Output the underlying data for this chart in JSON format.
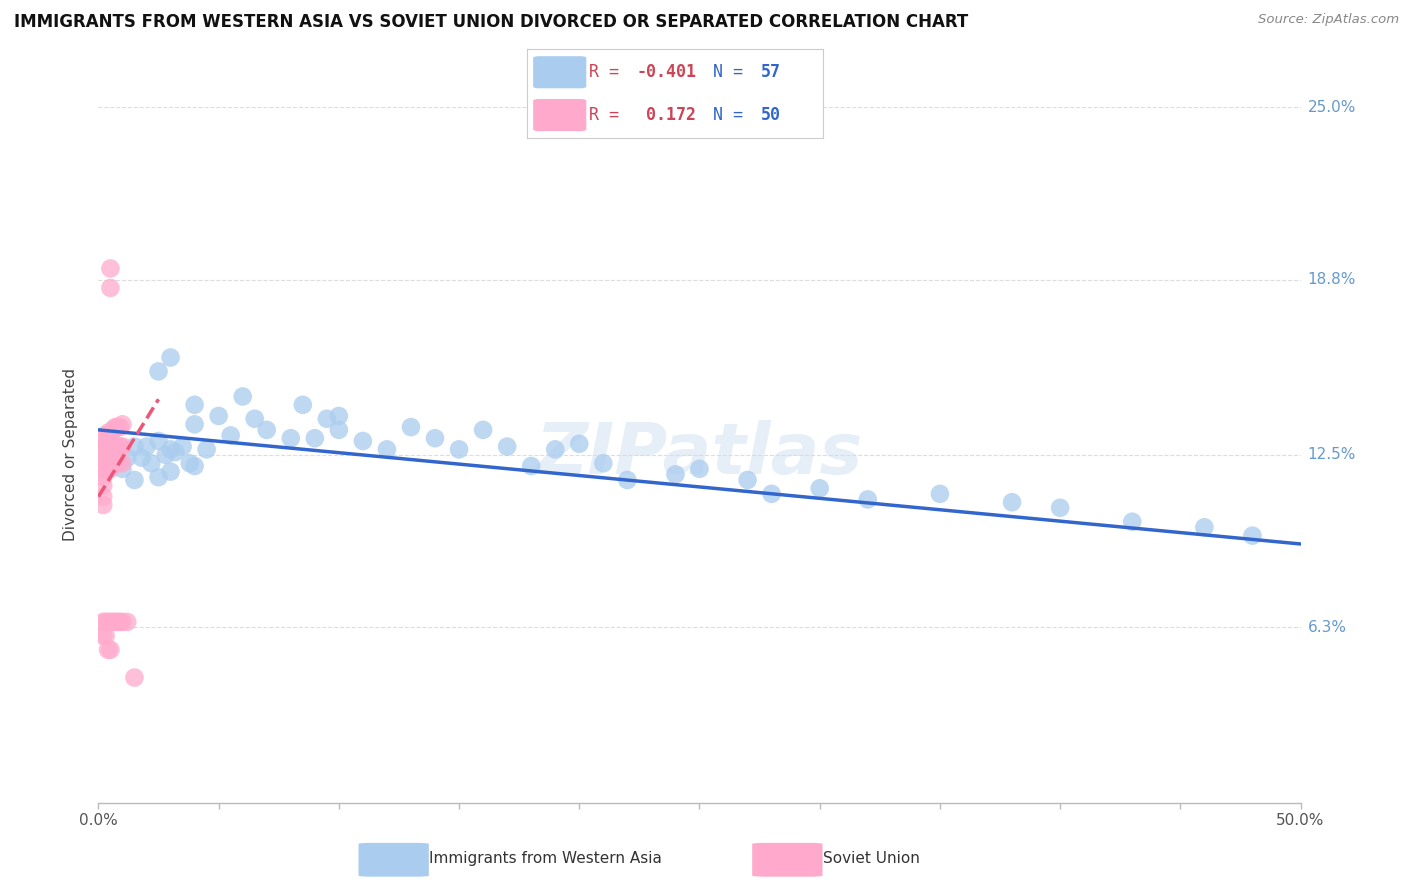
{
  "title": "IMMIGRANTS FROM WESTERN ASIA VS SOVIET UNION DIVORCED OR SEPARATED CORRELATION CHART",
  "source": "Source: ZipAtlas.com",
  "ylabel": "Divorced or Separated",
  "xlim": [
    0.0,
    0.5
  ],
  "ylim": [
    0.0,
    0.25
  ],
  "xtick_values": [
    0.0,
    0.05,
    0.1,
    0.15,
    0.2,
    0.25,
    0.3,
    0.35,
    0.4,
    0.45,
    0.5
  ],
  "xticklabels_visible": [
    "0.0%",
    "50.0%"
  ],
  "xticklabels_pos": [
    0.0,
    0.5
  ],
  "ytick_values": [
    0.063,
    0.125,
    0.188,
    0.25
  ],
  "ytick_labels": [
    "6.3%",
    "12.5%",
    "18.8%",
    "25.0%"
  ],
  "title_fontsize": 12,
  "background_color": "#ffffff",
  "blue_color": "#aaccee",
  "pink_color": "#ffaacc",
  "blue_line_color": "#3366cc",
  "pink_line_color": "#ee5577",
  "grid_color": "#dddddd",
  "right_label_color": "#6699cc",
  "blue_scatter_x": [
    0.008,
    0.01,
    0.012,
    0.015,
    0.015,
    0.018,
    0.02,
    0.022,
    0.025,
    0.025,
    0.028,
    0.03,
    0.03,
    0.032,
    0.035,
    0.038,
    0.04,
    0.04,
    0.045,
    0.05,
    0.055,
    0.06,
    0.065,
    0.07,
    0.08,
    0.085,
    0.09,
    0.095,
    0.1,
    0.1,
    0.11,
    0.12,
    0.13,
    0.14,
    0.15,
    0.16,
    0.17,
    0.18,
    0.19,
    0.2,
    0.21,
    0.22,
    0.24,
    0.25,
    0.27,
    0.28,
    0.3,
    0.32,
    0.35,
    0.38,
    0.4,
    0.43,
    0.46,
    0.48,
    0.025,
    0.03,
    0.04
  ],
  "blue_scatter_y": [
    0.126,
    0.12,
    0.124,
    0.128,
    0.116,
    0.124,
    0.128,
    0.122,
    0.13,
    0.117,
    0.125,
    0.127,
    0.119,
    0.126,
    0.128,
    0.122,
    0.136,
    0.121,
    0.127,
    0.139,
    0.132,
    0.146,
    0.138,
    0.134,
    0.131,
    0.143,
    0.131,
    0.138,
    0.139,
    0.134,
    0.13,
    0.127,
    0.135,
    0.131,
    0.127,
    0.134,
    0.128,
    0.121,
    0.127,
    0.129,
    0.122,
    0.116,
    0.118,
    0.12,
    0.116,
    0.111,
    0.113,
    0.109,
    0.111,
    0.108,
    0.106,
    0.101,
    0.099,
    0.096,
    0.155,
    0.16,
    0.143
  ],
  "pink_scatter_x": [
    0.002,
    0.002,
    0.002,
    0.002,
    0.002,
    0.002,
    0.002,
    0.002,
    0.002,
    0.002,
    0.003,
    0.003,
    0.003,
    0.003,
    0.003,
    0.003,
    0.004,
    0.004,
    0.004,
    0.004,
    0.004,
    0.005,
    0.005,
    0.005,
    0.005,
    0.005,
    0.005,
    0.005,
    0.005,
    0.006,
    0.006,
    0.006,
    0.006,
    0.007,
    0.007,
    0.007,
    0.007,
    0.008,
    0.008,
    0.008,
    0.008,
    0.009,
    0.009,
    0.009,
    0.01,
    0.01,
    0.01,
    0.01,
    0.012,
    0.015
  ],
  "pink_scatter_y": [
    0.13,
    0.127,
    0.124,
    0.12,
    0.117,
    0.114,
    0.11,
    0.107,
    0.065,
    0.06,
    0.132,
    0.128,
    0.124,
    0.12,
    0.065,
    0.06,
    0.133,
    0.128,
    0.122,
    0.065,
    0.055,
    0.192,
    0.185,
    0.132,
    0.128,
    0.124,
    0.12,
    0.065,
    0.055,
    0.134,
    0.128,
    0.122,
    0.065,
    0.135,
    0.128,
    0.122,
    0.065,
    0.135,
    0.128,
    0.122,
    0.065,
    0.135,
    0.128,
    0.065,
    0.136,
    0.128,
    0.122,
    0.065,
    0.065,
    0.045
  ],
  "blue_trend_x": [
    0.0,
    0.5
  ],
  "blue_trend_y": [
    0.134,
    0.093
  ],
  "pink_trend_x": [
    0.0,
    0.025
  ],
  "pink_trend_y": [
    0.11,
    0.145
  ],
  "legend_r1": "R = -0.401",
  "legend_n1": "N = 57",
  "legend_r2": "R =  0.172",
  "legend_n2": "N = 50"
}
